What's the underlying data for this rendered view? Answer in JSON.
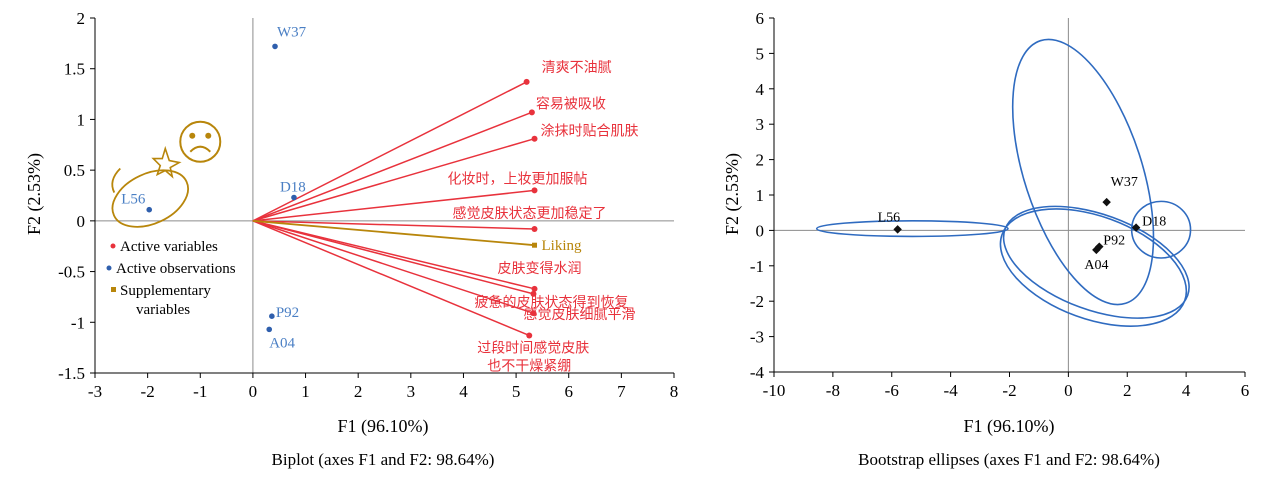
{
  "chart_data": [
    {
      "type": "scatter",
      "subtype": "biplot",
      "title": "Biplot (axes F1 and F2: 98.64%)",
      "xlabel": "F1 (96.10%)",
      "ylabel": "F2 (2.53%)",
      "xlim": [
        -3,
        8
      ],
      "ylim": [
        -1.5,
        2
      ],
      "xticks": [
        "-3",
        "-2",
        "-1",
        "0",
        "1",
        "2",
        "3",
        "4",
        "5",
        "6",
        "7",
        "8"
      ],
      "yticks": [
        "-1.5",
        "-1",
        "-0.5",
        "0",
        "0.5",
        "1",
        "1.5",
        "2"
      ],
      "grid": false,
      "legend_position": "left",
      "legend": [
        {
          "label": "Active variables",
          "color": "#e8323c"
        },
        {
          "label": "Active observations",
          "color": "#2f5fad"
        },
        {
          "label": "Supplementary",
          "label2": "variables",
          "color": "#b8860b"
        }
      ],
      "observations": [
        {
          "label": "W37",
          "x": 0.42,
          "y": 1.72
        },
        {
          "label": "L56",
          "x": -1.97,
          "y": 0.11
        },
        {
          "label": "D18",
          "x": 0.78,
          "y": 0.23
        },
        {
          "label": "P92",
          "x": 0.36,
          "y": -0.94
        },
        {
          "label": "A04",
          "x": 0.31,
          "y": -1.07
        }
      ],
      "active_variables": [
        {
          "label": "清爽不油腻",
          "x": 5.2,
          "y": 1.37
        },
        {
          "label": "容易被吸收",
          "x": 5.3,
          "y": 1.07
        },
        {
          "label": "涂抹时贴合肌肤",
          "x": 5.35,
          "y": 0.81
        },
        {
          "label": "化妆时，上妆更加服帖",
          "x": 5.35,
          "y": 0.3
        },
        {
          "label": "感觉皮肤状态更加稳定了",
          "x": 5.35,
          "y": -0.08
        },
        {
          "label": "皮肤变得水润",
          "x": 5.35,
          "y": -0.67
        },
        {
          "label": "疲惫的皮肤状态得到恢复",
          "x": 5.33,
          "y": -0.72
        },
        {
          "label": "感觉皮肤细腻平滑",
          "x": 5.33,
          "y": -0.91
        },
        {
          "label": "过段时间感觉皮肤",
          "label2": "也不干燥紧绷",
          "x": 5.25,
          "y": -1.13
        }
      ],
      "supplementary_variables": [
        {
          "label": "Liking",
          "x": 5.35,
          "y": -0.24
        }
      ],
      "annotations": [
        {
          "type": "sad-face-icon",
          "x": -1.0,
          "y": 0.78
        },
        {
          "type": "ellipse-around-L56",
          "cx": -1.95,
          "cy": 0.22
        }
      ],
      "colors": {
        "active_variable": "#e8323c",
        "observation": "#2f5fad",
        "observation_label": "#4a7fc4",
        "supplementary": "#b8860b"
      }
    },
    {
      "type": "scatter",
      "subtype": "bootstrap-ellipses",
      "title": "Bootstrap ellipses (axes F1 and F2: 98.64%)",
      "xlabel": "F1 (96.10%)",
      "ylabel": "F2 (2.53%)",
      "xlim": [
        -10,
        6
      ],
      "ylim": [
        -4,
        6
      ],
      "xticks": [
        "-10",
        "-8",
        "-6",
        "-4",
        "-2",
        "0",
        "2",
        "4",
        "6"
      ],
      "yticks": [
        "-4",
        "-3",
        "-2",
        "-1",
        "0",
        "1",
        "2",
        "3",
        "4",
        "5",
        "6"
      ],
      "grid": false,
      "points": [
        {
          "label": "L56",
          "x": -5.8,
          "y": 0.03
        },
        {
          "label": "W37",
          "x": 1.3,
          "y": 0.8
        },
        {
          "label": "D18",
          "x": 2.3,
          "y": 0.08
        },
        {
          "label": "P92",
          "x": 1.05,
          "y": -0.46
        },
        {
          "label": "A04",
          "x": 0.95,
          "y": -0.55
        }
      ],
      "ellipses": [
        {
          "name": "L56",
          "cx": -5.3,
          "cy": 0.05,
          "rx": 3.25,
          "ry": 0.22,
          "angle": 0
        },
        {
          "name": "W37",
          "cx": 0.5,
          "cy": 1.65,
          "rx": 2.0,
          "ry": 3.9,
          "angle": 18
        },
        {
          "name": "D18",
          "cx": 3.15,
          "cy": 0.02,
          "rx": 1.0,
          "ry": 0.8,
          "angle": 0
        },
        {
          "name": "P92",
          "cx": 0.95,
          "cy": -0.9,
          "rx": 3.3,
          "ry": 1.35,
          "angle": -20
        },
        {
          "name": "A04",
          "cx": 0.85,
          "cy": -1.05,
          "rx": 3.3,
          "ry": 1.45,
          "angle": -20
        }
      ],
      "colors": {
        "ellipse": "#2f6bc0",
        "point": "#111111"
      }
    }
  ]
}
